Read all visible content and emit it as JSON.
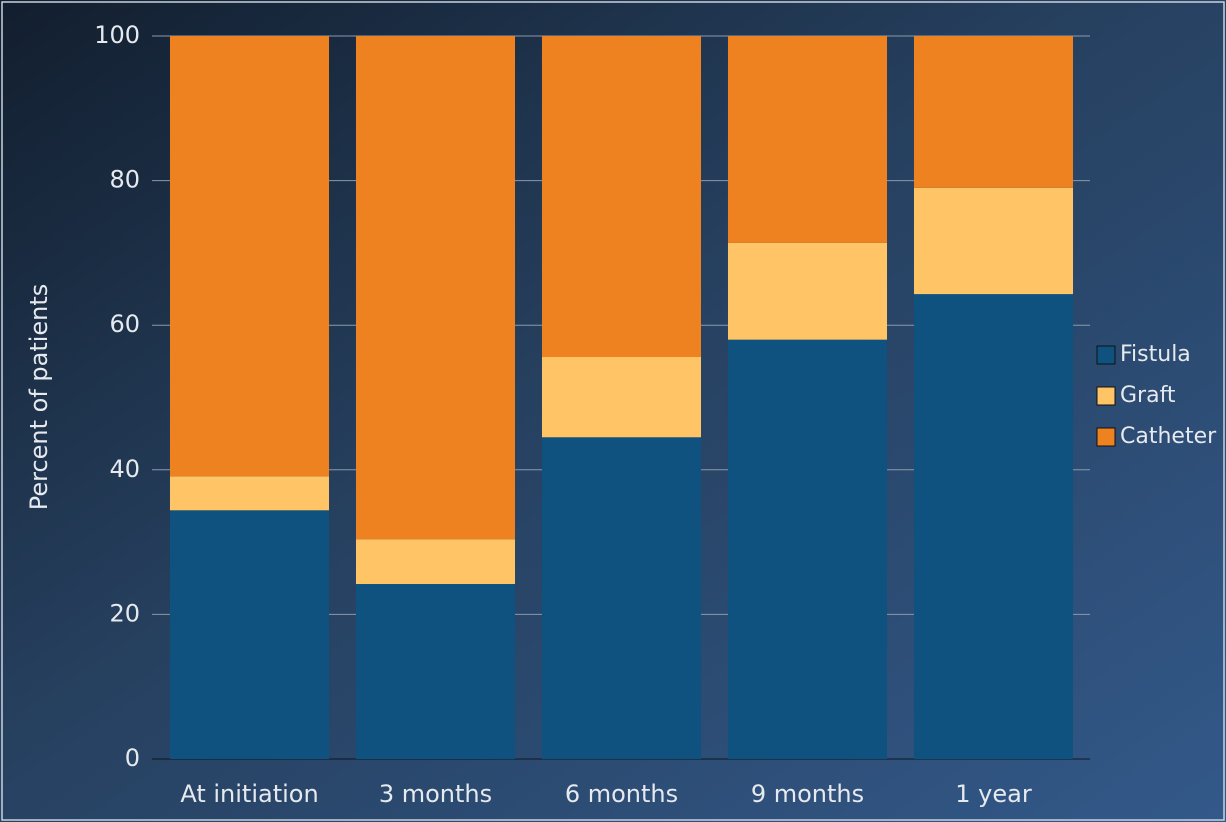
{
  "chart_data": {
    "type": "stacked_bar",
    "ylabel": "Percent of patients",
    "categories": [
      "At initiation",
      "3 months",
      "6 months",
      "9 months",
      "1 year"
    ],
    "series": [
      {
        "name": "Fistula",
        "color": "#0f527f",
        "values": [
          34.4,
          24.2,
          44.5,
          58.0,
          64.3
        ]
      },
      {
        "name": "Graft",
        "color": "#fec466",
        "values": [
          4.7,
          6.2,
          11.1,
          13.4,
          14.7
        ]
      },
      {
        "name": "Catheter",
        "color": "#ee8220",
        "values": [
          60.9,
          69.6,
          44.4,
          28.6,
          21.0
        ]
      }
    ],
    "ylim": [
      0,
      100
    ],
    "yticks": [
      0,
      20,
      40,
      60,
      80,
      100
    ],
    "grid": true,
    "legend": "right"
  }
}
